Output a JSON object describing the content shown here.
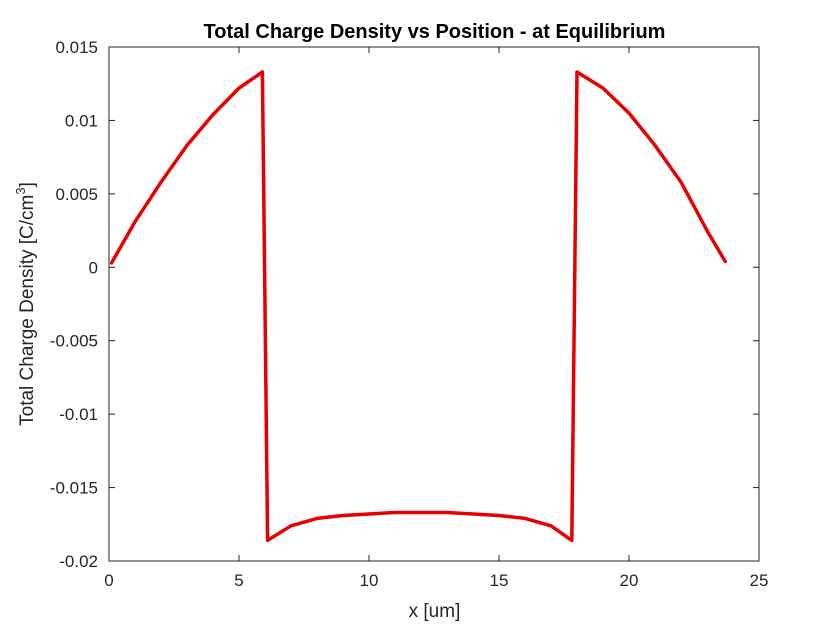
{
  "chart_data": {
    "type": "line",
    "title": "Total Charge Density vs Position - at Equilibrium",
    "xlabel": "x [um]",
    "ylabel_main": "Total Charge Density [C/cm",
    "ylabel_sup": "3",
    "ylabel_close": "]",
    "xlim": [
      0,
      25
    ],
    "ylim": [
      -0.02,
      0.015
    ],
    "xticks": [
      0,
      5,
      10,
      15,
      20,
      25
    ],
    "xtick_labels": [
      "0",
      "5",
      "10",
      "15",
      "20",
      "25"
    ],
    "yticks": [
      -0.02,
      -0.015,
      -0.01,
      -0.005,
      0,
      0.005,
      0.01,
      0.015
    ],
    "ytick_labels": [
      "-0.02",
      "-0.015",
      "-0.01",
      "-0.005",
      "0",
      "0.005",
      "0.01",
      "0.015"
    ],
    "grid": false,
    "series": [
      {
        "color": "#e60000",
        "x": [
          0.1,
          1.0,
          2.0,
          3.0,
          4.0,
          5.0,
          5.9,
          6.1,
          7.0,
          8.0,
          9.0,
          10.0,
          11.0,
          12.0,
          13.0,
          14.0,
          15.0,
          16.0,
          17.0,
          17.8,
          18.0,
          19.0,
          20.0,
          21.0,
          22.0,
          23.0,
          23.7
        ],
        "y": [
          0.0003,
          0.0031,
          0.0058,
          0.0083,
          0.0104,
          0.0122,
          0.0133,
          -0.0186,
          -0.0176,
          -0.0171,
          -0.0169,
          -0.0168,
          -0.0167,
          -0.0167,
          -0.0167,
          -0.0168,
          -0.0169,
          -0.0171,
          -0.0176,
          -0.0186,
          0.0133,
          0.0122,
          0.0105,
          0.0083,
          0.0058,
          0.0025,
          0.0004
        ]
      }
    ]
  }
}
